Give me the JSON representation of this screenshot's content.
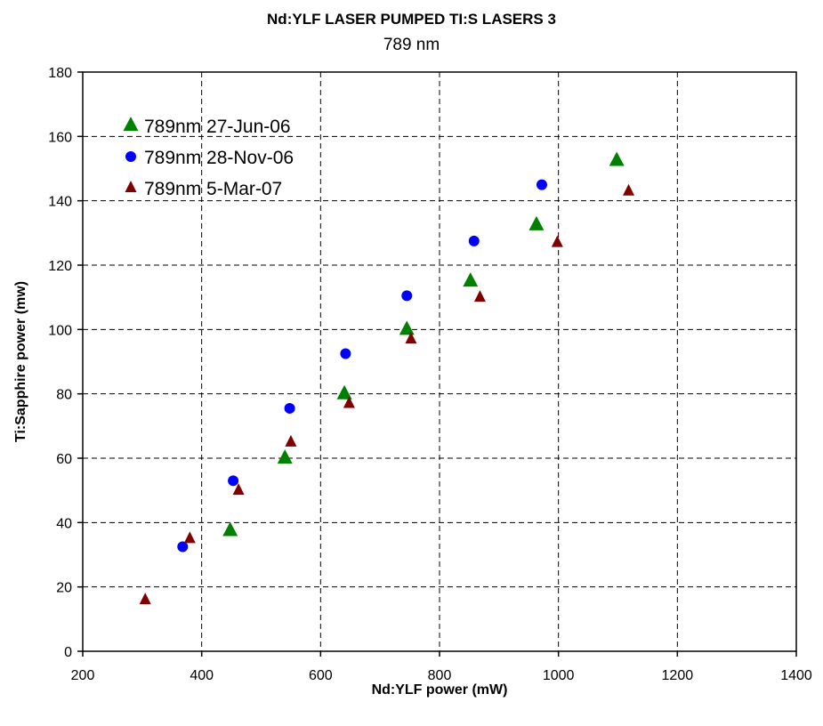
{
  "chart_data": {
    "type": "scatter",
    "title": "Nd:YLF LASER PUMPED TI:S LASERS 3",
    "subtitle": "789 nm",
    "xlabel": "Nd:YLF power (mW)",
    "ylabel": "Ti:Sapphire power (mw)",
    "xlim": [
      200,
      1400
    ],
    "ylim": [
      0,
      180
    ],
    "xticks": [
      200,
      400,
      600,
      800,
      1000,
      1200,
      1400
    ],
    "yticks": [
      0,
      20,
      40,
      60,
      80,
      100,
      120,
      140,
      160,
      180
    ],
    "grid": true,
    "legend_position": "top-left",
    "series": [
      {
        "name": "789nm 27-Jun-06",
        "marker": "triangle",
        "color": "#008000",
        "x": [
          448,
          540,
          640,
          745,
          852,
          963,
          1098
        ],
        "y": [
          37.5,
          60,
          80,
          100,
          115,
          132.5,
          152.5
        ]
      },
      {
        "name": "789nm 28-Nov-06",
        "marker": "circle",
        "color": "#0000ff",
        "x": [
          368,
          453,
          548,
          642,
          745,
          858,
          972
        ],
        "y": [
          32.5,
          53,
          75.5,
          92.5,
          110.5,
          127.5,
          145
        ]
      },
      {
        "name": "789nm 5-Mar-07",
        "marker": "small-triangle",
        "color": "#800000",
        "x": [
          305,
          380,
          462,
          550,
          648,
          752,
          868,
          998,
          1118
        ],
        "y": [
          16,
          35,
          50,
          65,
          77,
          97,
          110,
          127,
          143
        ]
      }
    ]
  }
}
